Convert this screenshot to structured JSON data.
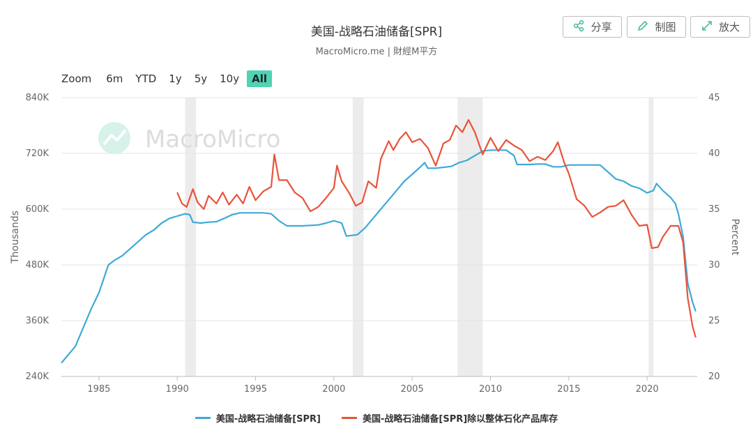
{
  "header": {
    "title": "美国-战略石油储备[SPR]",
    "subtitle": "MacroMicro.me | 財經M平方"
  },
  "toolbar": {
    "share_label": "分享",
    "share_icon": "share-icon",
    "draw_label": "制图",
    "draw_icon": "pencil-icon",
    "expand_label": "放大",
    "expand_icon": "expand-icon"
  },
  "zoom": {
    "label": "Zoom",
    "options": [
      "6m",
      "YTD",
      "1y",
      "5y",
      "10y",
      "All"
    ],
    "active": "All"
  },
  "watermark": {
    "text": "MacroMicro",
    "icon": "macromicro-logo-icon"
  },
  "chart_data": {
    "type": "line",
    "title": "美国-战略石油储备[SPR]",
    "subtitle": "MacroMicro.me | 財經M平方",
    "xlim": [
      1982.6,
      2023.2
    ],
    "x_ticks": [
      "1985",
      "1990",
      "1995",
      "2000",
      "2005",
      "2010",
      "2015",
      "2020"
    ],
    "y_left": {
      "label": "Thousands",
      "lim": [
        240,
        840
      ],
      "ticks": [
        "240K",
        "360K",
        "480K",
        "600K",
        "720K",
        "840K"
      ]
    },
    "y_right": {
      "label": "Percent",
      "lim": [
        20,
        45
      ],
      "ticks": [
        "20",
        "25",
        "30",
        "35",
        "40",
        "45"
      ]
    },
    "recessions": [
      [
        1990.5,
        1991.2
      ],
      [
        2001.2,
        2001.9
      ],
      [
        2007.9,
        2009.5
      ],
      [
        2020.1,
        2020.4
      ]
    ],
    "grid": true,
    "legend_position": "bottom-center",
    "series": [
      {
        "name": "美国-战略石油储备[SPR]",
        "color": "#3ea9d6",
        "axis": "left",
        "points": [
          [
            1982.6,
            269
          ],
          [
            1983.0,
            285
          ],
          [
            1983.5,
            305
          ],
          [
            1984.0,
            345
          ],
          [
            1984.5,
            385
          ],
          [
            1985.0,
            420
          ],
          [
            1985.3,
            450
          ],
          [
            1985.6,
            480
          ],
          [
            1986.0,
            490
          ],
          [
            1986.5,
            500
          ],
          [
            1987.0,
            515
          ],
          [
            1987.5,
            530
          ],
          [
            1988.0,
            545
          ],
          [
            1988.5,
            555
          ],
          [
            1989.0,
            570
          ],
          [
            1989.5,
            580
          ],
          [
            1990.0,
            585
          ],
          [
            1990.5,
            590
          ],
          [
            1990.8,
            588
          ],
          [
            1991.0,
            572
          ],
          [
            1991.5,
            570
          ],
          [
            1992.0,
            572
          ],
          [
            1992.5,
            573
          ],
          [
            1993.0,
            580
          ],
          [
            1993.5,
            588
          ],
          [
            1994.0,
            592
          ],
          [
            1994.5,
            592
          ],
          [
            1995.0,
            592
          ],
          [
            1995.5,
            592
          ],
          [
            1996.0,
            590
          ],
          [
            1996.5,
            575
          ],
          [
            1997.0,
            564
          ],
          [
            1998.0,
            564
          ],
          [
            1999.0,
            566
          ],
          [
            1999.5,
            570
          ],
          [
            2000.0,
            575
          ],
          [
            2000.5,
            570
          ],
          [
            2000.8,
            542
          ],
          [
            2001.5,
            545
          ],
          [
            2002.0,
            560
          ],
          [
            2002.5,
            580
          ],
          [
            2003.0,
            600
          ],
          [
            2003.5,
            620
          ],
          [
            2004.0,
            640
          ],
          [
            2004.5,
            660
          ],
          [
            2005.0,
            675
          ],
          [
            2005.5,
            690
          ],
          [
            2005.8,
            700
          ],
          [
            2006.0,
            688
          ],
          [
            2006.5,
            688
          ],
          [
            2007.0,
            690
          ],
          [
            2007.5,
            692
          ],
          [
            2008.0,
            700
          ],
          [
            2008.5,
            705
          ],
          [
            2009.0,
            715
          ],
          [
            2009.5,
            725
          ],
          [
            2010.0,
            727
          ],
          [
            2010.5,
            727
          ],
          [
            2011.0,
            727
          ],
          [
            2011.5,
            715
          ],
          [
            2011.7,
            696
          ],
          [
            2012.5,
            696
          ],
          [
            2013.0,
            697
          ],
          [
            2013.5,
            697
          ],
          [
            2014.0,
            691
          ],
          [
            2014.5,
            691
          ],
          [
            2015.0,
            695
          ],
          [
            2015.5,
            695
          ],
          [
            2016.0,
            695
          ],
          [
            2016.5,
            695
          ],
          [
            2017.0,
            695
          ],
          [
            2017.5,
            680
          ],
          [
            2018.0,
            665
          ],
          [
            2018.5,
            660
          ],
          [
            2019.0,
            650
          ],
          [
            2019.5,
            645
          ],
          [
            2020.0,
            635
          ],
          [
            2020.4,
            640
          ],
          [
            2020.6,
            655
          ],
          [
            2021.0,
            640
          ],
          [
            2021.5,
            625
          ],
          [
            2021.8,
            612
          ],
          [
            2022.0,
            590
          ],
          [
            2022.3,
            540
          ],
          [
            2022.6,
            440
          ],
          [
            2022.9,
            400
          ],
          [
            2023.1,
            380
          ]
        ]
      },
      {
        "name": "美国-战略石油储备[SPR]除以整体石化产品库存",
        "color": "#e8533a",
        "axis": "right",
        "points": [
          [
            1990.0,
            36.5
          ],
          [
            1990.3,
            35.5
          ],
          [
            1990.6,
            35.2
          ],
          [
            1991.0,
            36.8
          ],
          [
            1991.3,
            35.6
          ],
          [
            1991.7,
            35.0
          ],
          [
            1992.0,
            36.2
          ],
          [
            1992.5,
            35.5
          ],
          [
            1992.9,
            36.5
          ],
          [
            1993.3,
            35.4
          ],
          [
            1993.8,
            36.3
          ],
          [
            1994.2,
            35.5
          ],
          [
            1994.6,
            37.0
          ],
          [
            1995.0,
            35.8
          ],
          [
            1995.5,
            36.6
          ],
          [
            1996.0,
            37.0
          ],
          [
            1996.2,
            39.9
          ],
          [
            1996.5,
            37.6
          ],
          [
            1997.0,
            37.6
          ],
          [
            1997.5,
            36.5
          ],
          [
            1998.0,
            36.0
          ],
          [
            1998.5,
            34.8
          ],
          [
            1999.0,
            35.2
          ],
          [
            1999.5,
            36.0
          ],
          [
            2000.0,
            36.9
          ],
          [
            2000.2,
            38.9
          ],
          [
            2000.5,
            37.5
          ],
          [
            2001.0,
            36.4
          ],
          [
            2001.4,
            35.3
          ],
          [
            2001.8,
            35.6
          ],
          [
            2002.2,
            37.5
          ],
          [
            2002.7,
            36.9
          ],
          [
            2003.0,
            39.5
          ],
          [
            2003.5,
            41.1
          ],
          [
            2003.8,
            40.3
          ],
          [
            2004.2,
            41.3
          ],
          [
            2004.6,
            41.9
          ],
          [
            2005.0,
            41.0
          ],
          [
            2005.5,
            41.3
          ],
          [
            2006.0,
            40.5
          ],
          [
            2006.5,
            38.9
          ],
          [
            2007.0,
            40.9
          ],
          [
            2007.4,
            41.2
          ],
          [
            2007.8,
            42.5
          ],
          [
            2008.2,
            41.9
          ],
          [
            2008.6,
            43.0
          ],
          [
            2009.0,
            41.9
          ],
          [
            2009.5,
            39.9
          ],
          [
            2010.0,
            41.4
          ],
          [
            2010.5,
            40.2
          ],
          [
            2011.0,
            41.2
          ],
          [
            2011.5,
            40.7
          ],
          [
            2012.0,
            40.3
          ],
          [
            2012.5,
            39.3
          ],
          [
            2013.0,
            39.7
          ],
          [
            2013.5,
            39.4
          ],
          [
            2014.0,
            40.2
          ],
          [
            2014.3,
            41.0
          ],
          [
            2014.7,
            39.2
          ],
          [
            2015.0,
            38.2
          ],
          [
            2015.5,
            35.9
          ],
          [
            2016.0,
            35.3
          ],
          [
            2016.5,
            34.3
          ],
          [
            2017.0,
            34.7
          ],
          [
            2017.5,
            35.2
          ],
          [
            2018.0,
            35.3
          ],
          [
            2018.5,
            35.8
          ],
          [
            2019.0,
            34.5
          ],
          [
            2019.5,
            33.5
          ],
          [
            2020.0,
            33.6
          ],
          [
            2020.3,
            31.5
          ],
          [
            2020.7,
            31.6
          ],
          [
            2021.0,
            32.5
          ],
          [
            2021.5,
            33.5
          ],
          [
            2022.0,
            33.5
          ],
          [
            2022.3,
            32.0
          ],
          [
            2022.6,
            27.0
          ],
          [
            2022.9,
            24.5
          ],
          [
            2023.1,
            23.5
          ]
        ]
      }
    ]
  }
}
